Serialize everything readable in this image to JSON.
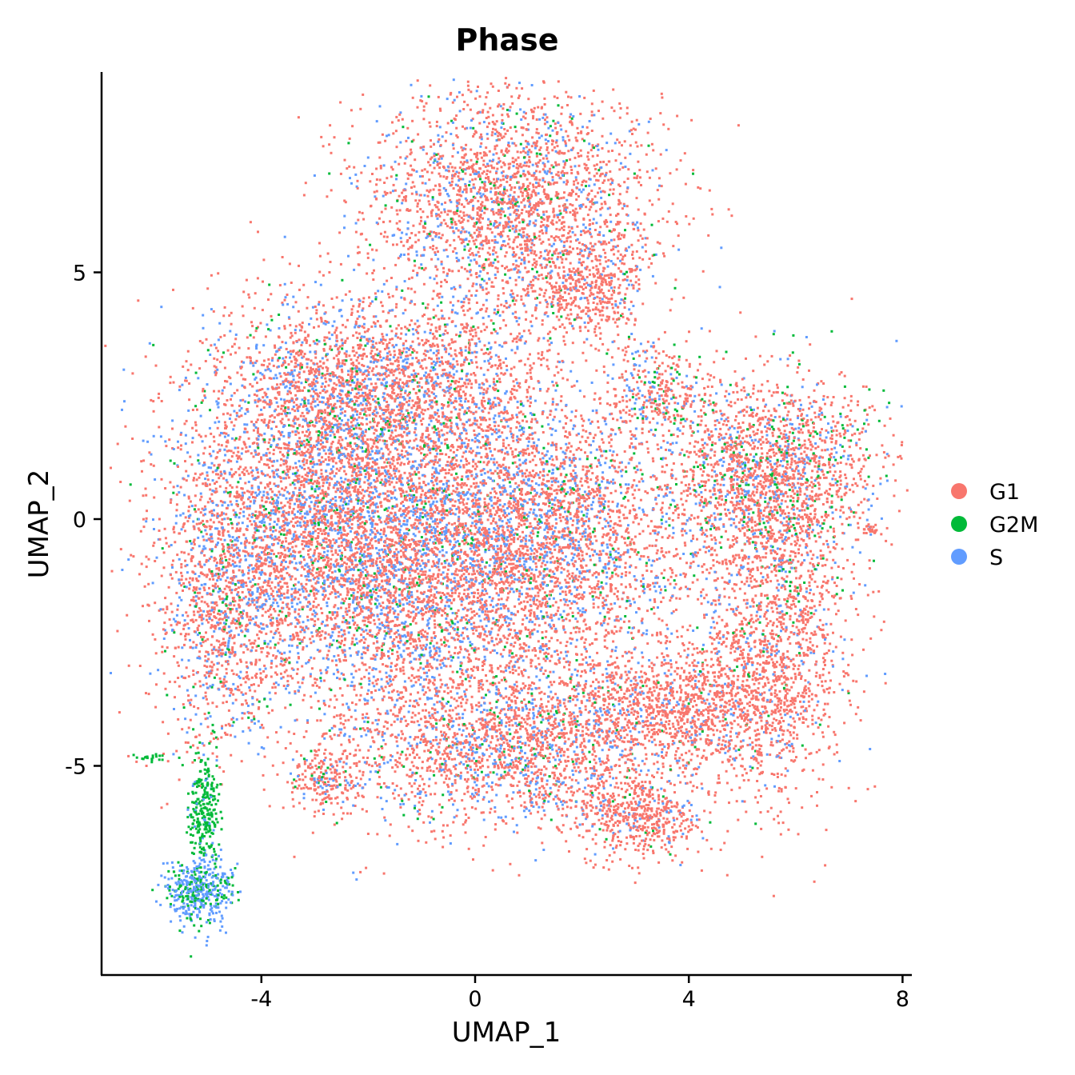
{
  "chart_data": {
    "type": "scatter",
    "title": "Phase",
    "xlabel": "UMAP_1",
    "ylabel": "UMAP_2",
    "xlim": [
      -7,
      8.2
    ],
    "ylim": [
      -9.1,
      9.2
    ],
    "x_ticks": [
      -4,
      0,
      4,
      8
    ],
    "y_ticks": [
      -5,
      0,
      5
    ],
    "x_tick_labels": [
      "-4",
      "0",
      "4",
      "8"
    ],
    "y_tick_labels": [
      "-5",
      "0",
      "5"
    ],
    "grid": false,
    "legend_position": "right",
    "series": [
      {
        "name": "G1",
        "color": "#F8766D"
      },
      {
        "name": "G2M",
        "color": "#00BA38"
      },
      {
        "name": "S",
        "color": "#619CFF"
      }
    ],
    "clusters": [
      {
        "cx": 0.7,
        "cy": 6.4,
        "sx": 1.4,
        "sy": 1.2,
        "n": 2600,
        "weights": [
          0.75,
          0.05,
          0.2
        ]
      },
      {
        "cx": 2.1,
        "cy": 4.7,
        "sx": 0.5,
        "sy": 0.5,
        "n": 400,
        "weights": [
          0.85,
          0.03,
          0.12
        ]
      },
      {
        "cx": -1.8,
        "cy": 2.8,
        "sx": 1.5,
        "sy": 0.8,
        "n": 1800,
        "weights": [
          0.72,
          0.05,
          0.23
        ]
      },
      {
        "cx": -3.2,
        "cy": 0.2,
        "sx": 1.3,
        "sy": 1.8,
        "n": 3000,
        "weights": [
          0.65,
          0.05,
          0.3
        ]
      },
      {
        "cx": -1.3,
        "cy": -0.6,
        "sx": 1.4,
        "sy": 1.8,
        "n": 3600,
        "weights": [
          0.65,
          0.05,
          0.3
        ]
      },
      {
        "cx": 1.3,
        "cy": -0.3,
        "sx": 1.4,
        "sy": 1.5,
        "n": 3200,
        "weights": [
          0.7,
          0.04,
          0.26
        ]
      },
      {
        "cx": 0.7,
        "cy": -4.5,
        "sx": 1.6,
        "sy": 0.9,
        "n": 2200,
        "weights": [
          0.72,
          0.05,
          0.23
        ]
      },
      {
        "cx": 3.0,
        "cy": -6.0,
        "sx": 0.6,
        "sy": 0.4,
        "n": 500,
        "weights": [
          0.9,
          0.02,
          0.08
        ]
      },
      {
        "cx": 5.5,
        "cy": 1.0,
        "sx": 1.0,
        "sy": 1.0,
        "n": 1800,
        "weights": [
          0.7,
          0.12,
          0.18
        ]
      },
      {
        "cx": 5.6,
        "cy": -2.2,
        "sx": 0.7,
        "sy": 1.7,
        "n": 1500,
        "weights": [
          0.85,
          0.03,
          0.12
        ]
      },
      {
        "cx": 4.0,
        "cy": -3.8,
        "sx": 1.0,
        "sy": 0.6,
        "n": 1100,
        "weights": [
          0.9,
          0.02,
          0.08
        ]
      },
      {
        "cx": -4.8,
        "cy": -1.8,
        "sx": 0.6,
        "sy": 1.4,
        "n": 1000,
        "weights": [
          0.7,
          0.05,
          0.25
        ]
      },
      {
        "cx": -2.8,
        "cy": -5.3,
        "sx": 0.35,
        "sy": 0.3,
        "n": 220,
        "weights": [
          0.75,
          0.05,
          0.2
        ]
      },
      {
        "cx": 3.4,
        "cy": 2.6,
        "sx": 0.5,
        "sy": 0.5,
        "n": 300,
        "weights": [
          0.65,
          0.15,
          0.2
        ]
      },
      {
        "cx": 7.4,
        "cy": -0.2,
        "sx": 0.1,
        "sy": 0.06,
        "n": 25,
        "weights": [
          1,
          0,
          0
        ]
      },
      {
        "cx": -5.1,
        "cy": -5.9,
        "sx": 0.15,
        "sy": 0.55,
        "n": 260,
        "weights": [
          0.0,
          0.92,
          0.08
        ]
      },
      {
        "cx": -5.2,
        "cy": -7.5,
        "sx": 0.3,
        "sy": 0.35,
        "n": 450,
        "weights": [
          0.0,
          0.35,
          0.65
        ]
      },
      {
        "cx": -6.1,
        "cy": -4.8,
        "sx": 0.2,
        "sy": 0.05,
        "n": 20,
        "weights": [
          0.0,
          1.0,
          0.0
        ]
      }
    ]
  }
}
